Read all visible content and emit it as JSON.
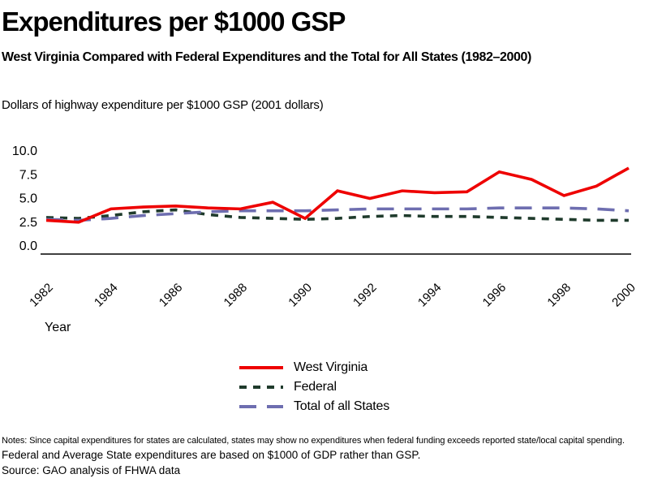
{
  "header": {
    "title": "Expenditures per $1000 GSP",
    "subtitle": "West Virginia Compared with Federal Expenditures and the Total for All States (1982–2000)",
    "axis_note": "Dollars of highway expenditure per $1000 GSP (2001 dollars)"
  },
  "chart_data": {
    "type": "line",
    "title": "Expenditures per $1000 GSP",
    "xlabel": "Year",
    "ylabel": "Dollars of highway expenditure per $1000 GSP (2001 dollars)",
    "x": [
      1982,
      1983,
      1984,
      1985,
      1986,
      1987,
      1988,
      1989,
      1990,
      1991,
      1992,
      1993,
      1994,
      1995,
      1996,
      1997,
      1998,
      1999,
      2000
    ],
    "x_ticks": [
      1982,
      1984,
      1986,
      1988,
      1990,
      1992,
      1994,
      1996,
      1998,
      2000
    ],
    "y_ticks": [
      0.0,
      2.5,
      5.0,
      7.5,
      10.0
    ],
    "y_tick_labels": [
      "0.0",
      "2.5",
      "5.0",
      "7.5",
      "10.0"
    ],
    "ylim": [
      0,
      10
    ],
    "grid": false,
    "legend_position": "bottom-center",
    "axis_color": "#000000",
    "series": [
      {
        "name": "West Virginia",
        "color": "#ee0000",
        "dash": "solid",
        "values": [
          2.7,
          2.5,
          3.9,
          4.1,
          4.2,
          4.0,
          3.9,
          4.6,
          2.9,
          5.8,
          5.0,
          5.8,
          5.6,
          5.7,
          7.8,
          7.0,
          5.3,
          6.3,
          8.2
        ]
      },
      {
        "name": "Federal",
        "color": "#1f3b2c",
        "dash": "short-dash",
        "values": [
          3.0,
          2.9,
          3.2,
          3.6,
          3.8,
          3.3,
          3.0,
          2.9,
          2.8,
          2.9,
          3.1,
          3.2,
          3.1,
          3.1,
          3.0,
          2.9,
          2.8,
          2.7,
          2.7
        ]
      },
      {
        "name": "Total of all States",
        "color": "#6e6eb0",
        "dash": "long-dash",
        "values": [
          2.8,
          2.7,
          2.9,
          3.2,
          3.4,
          3.6,
          3.7,
          3.7,
          3.7,
          3.8,
          3.9,
          3.9,
          3.9,
          3.9,
          4.0,
          4.0,
          4.0,
          3.9,
          3.7
        ]
      }
    ]
  },
  "footer": {
    "note1": "Notes: Since capital expenditures for states are calculated, states may show no expenditures when federal funding exceeds reported state/local capital spending.",
    "note2": "Federal and Average State expenditures are based on $1000 of GDP rather than GSP.",
    "source": "Source: GAO analysis of FHWA data"
  }
}
